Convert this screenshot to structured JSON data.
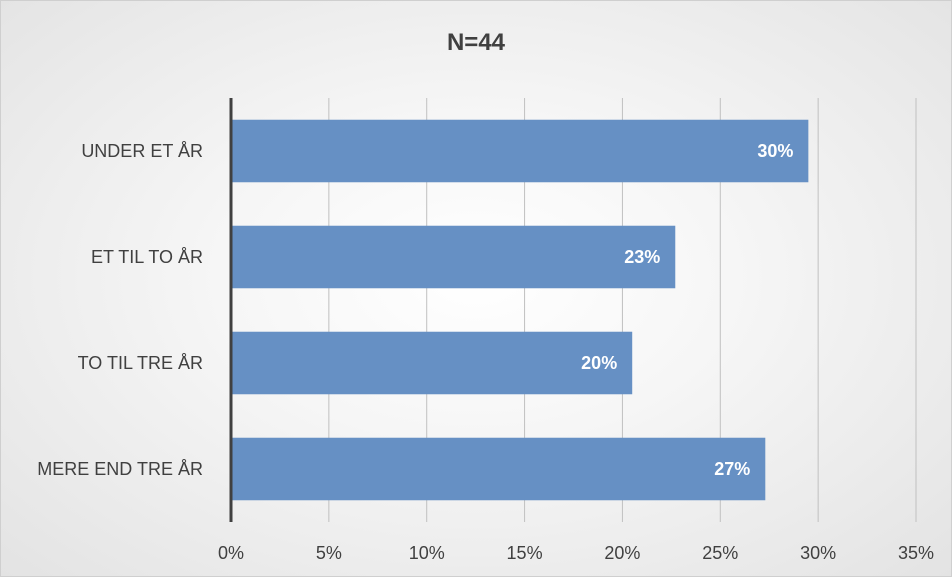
{
  "chart_data": {
    "type": "bar",
    "orientation": "horizontal",
    "title": "N=44",
    "categories": [
      "UNDER ET ÅR",
      "ET TIL TO ÅR",
      "TO TIL TRE ÅR",
      "MERE END TRE ÅR"
    ],
    "values": [
      29.5,
      22.7,
      20.5,
      27.3
    ],
    "data_labels": [
      "30%",
      "23%",
      "20%",
      "27%"
    ],
    "xlim": [
      0,
      35
    ],
    "x_ticks": [
      0,
      5,
      10,
      15,
      20,
      25,
      30,
      35
    ],
    "x_tick_labels": [
      "0%",
      "5%",
      "10%",
      "15%",
      "20%",
      "25%",
      "30%",
      "35%"
    ],
    "grid": "vertical",
    "legend": "none",
    "colors": {
      "bar": "#6690C4",
      "grid": "#c0c0c0",
      "axis": "#404040",
      "text": "#404040"
    }
  }
}
